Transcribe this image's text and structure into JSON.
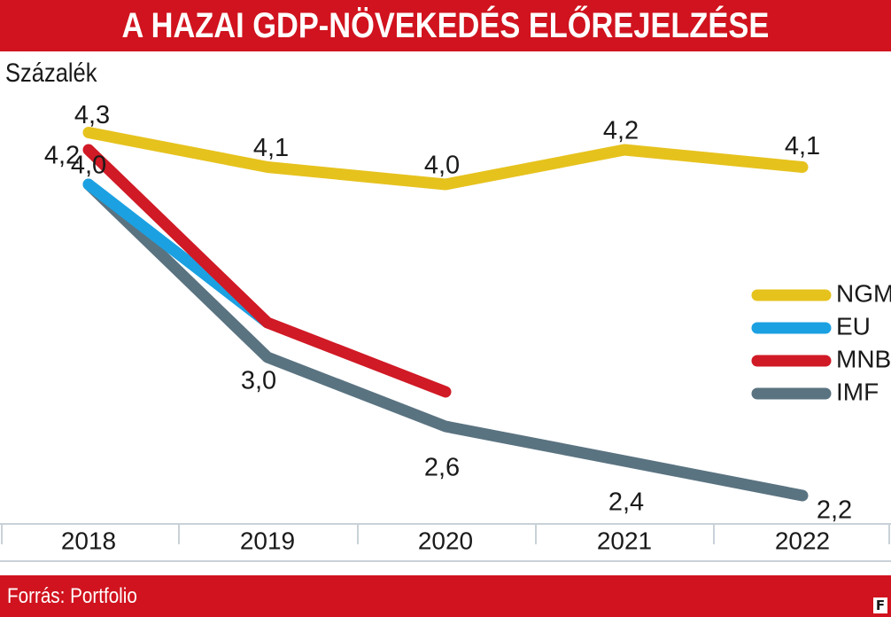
{
  "header": {
    "title": "A HAZAI GDP-NÖVEKEDÉS ELŐREJELZÉSE"
  },
  "footer": {
    "source": "Forrás: Portfolio",
    "logo": "F"
  },
  "colors": {
    "brand_red": "#d0131e",
    "NGM": "#e6c21d",
    "EU": "#1ba1e2",
    "MNB": "#d01a26",
    "IMF": "#5a7381"
  },
  "chart_data": {
    "type": "line",
    "title": "A HAZAI GDP-NÖVEKEDÉS ELŐREJELZÉSE",
    "ylabel": "Százalék",
    "xlabel": "",
    "categories": [
      "2018",
      "2019",
      "2020",
      "2021",
      "2022"
    ],
    "ylim": [
      2.0,
      4.5
    ],
    "grid": false,
    "legend_position": "right",
    "series": [
      {
        "name": "NGM",
        "values": [
          4.3,
          4.1,
          4.0,
          4.2,
          4.1
        ]
      },
      {
        "name": "EU",
        "values": [
          4.0,
          3.2,
          null,
          null,
          null
        ]
      },
      {
        "name": "MNB",
        "values": [
          4.2,
          3.2,
          2.8,
          null,
          null
        ]
      },
      {
        "name": "IMF",
        "values": [
          4.0,
          3.0,
          2.6,
          2.4,
          2.2
        ]
      }
    ],
    "data_labels": [
      {
        "text": "4,3",
        "x": "2018",
        "y": 4.3
      },
      {
        "text": "4,2",
        "x": "2018",
        "y": 4.2
      },
      {
        "text": "4,0",
        "x": "2018",
        "y": 4.0
      },
      {
        "text": "4,1",
        "x": "2019",
        "y": 4.1
      },
      {
        "text": "4,0",
        "x": "2020",
        "y": 4.0
      },
      {
        "text": "4,2",
        "x": "2021",
        "y": 4.2
      },
      {
        "text": "4,1",
        "x": "2022",
        "y": 4.1
      },
      {
        "text": "3,0",
        "x": "2019",
        "y": 3.0
      },
      {
        "text": "2,6",
        "x": "2020",
        "y": 2.6
      },
      {
        "text": "2,4",
        "x": "2021",
        "y": 2.4
      },
      {
        "text": "2,2",
        "x": "2022",
        "y": 2.2
      }
    ]
  }
}
